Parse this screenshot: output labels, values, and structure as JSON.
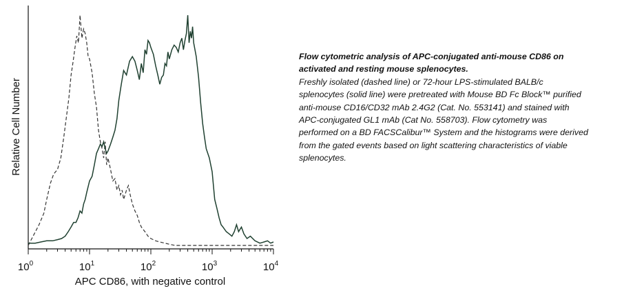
{
  "chart_data": {
    "type": "line",
    "xscale": "log",
    "xlim": [
      1,
      10000
    ],
    "ylim": [
      0,
      1
    ],
    "xlabel": "APC CD86, with negative control",
    "ylabel": "Relative Cell Number",
    "x_tick_labels": [
      {
        "base": "10",
        "exp": "0",
        "value": 1
      },
      {
        "base": "10",
        "exp": "1",
        "value": 10
      },
      {
        "base": "10",
        "exp": "2",
        "value": 100
      },
      {
        "base": "10",
        "exp": "3",
        "value": 1000
      },
      {
        "base": "10",
        "exp": "4",
        "value": 10000
      }
    ],
    "series": [
      {
        "style": "dashed",
        "color": "#333333",
        "x": [
          1.0,
          1.2,
          1.5,
          1.8,
          2.0,
          2.3,
          2.6,
          3.0,
          3.4,
          3.8,
          4.2,
          4.6,
          5.0,
          5.4,
          5.8,
          6.2,
          6.6,
          7.0,
          7.5,
          8.0,
          8.5,
          9.0,
          9.5,
          10,
          11,
          12,
          13,
          14,
          15,
          16,
          17,
          18,
          19,
          20,
          22,
          24,
          26,
          28,
          30,
          32,
          34,
          36,
          38,
          40,
          43,
          46,
          50,
          55,
          60,
          65,
          70,
          80,
          90,
          100,
          120,
          140,
          170,
          200,
          250,
          300,
          400,
          500,
          700,
          1000,
          1500,
          2000,
          3000,
          5000,
          7000,
          10000
        ],
        "y": [
          0.0,
          0.04,
          0.09,
          0.14,
          0.2,
          0.27,
          0.31,
          0.33,
          0.38,
          0.47,
          0.56,
          0.64,
          0.74,
          0.8,
          0.86,
          0.91,
          0.88,
          1.0,
          0.9,
          0.94,
          0.92,
          0.88,
          0.82,
          0.81,
          0.75,
          0.66,
          0.6,
          0.5,
          0.45,
          0.42,
          0.38,
          0.45,
          0.35,
          0.38,
          0.33,
          0.28,
          0.29,
          0.24,
          0.26,
          0.22,
          0.24,
          0.2,
          0.22,
          0.24,
          0.26,
          0.22,
          0.18,
          0.15,
          0.13,
          0.1,
          0.08,
          0.06,
          0.04,
          0.03,
          0.02,
          0.015,
          0.01,
          0.005,
          0.0,
          0.0,
          0.0,
          0.0,
          0.0,
          0.0,
          0.0,
          0.0,
          0.0,
          0.0,
          0.0,
          0.0
        ]
      },
      {
        "style": "solid",
        "color": "#1f4030",
        "x": [
          1.0,
          1.3,
          1.6,
          2.0,
          2.5,
          3.0,
          3.5,
          4.0,
          4.5,
          5.0,
          5.5,
          6.0,
          6.5,
          7.0,
          7.5,
          8.0,
          8.5,
          9.0,
          10,
          11,
          12,
          13,
          14,
          15,
          16,
          17,
          18,
          19,
          20,
          22,
          24,
          26,
          28,
          30,
          33,
          36,
          40,
          45,
          50,
          55,
          60,
          65,
          70,
          75,
          80,
          85,
          90,
          95,
          100,
          110,
          120,
          130,
          140,
          150,
          160,
          170,
          180,
          190,
          200,
          220,
          240,
          260,
          280,
          300,
          320,
          340,
          360,
          380,
          400,
          420,
          440,
          460,
          480,
          500,
          550,
          600,
          650,
          700,
          750,
          800,
          900,
          1000,
          1100,
          1200,
          1300,
          1400,
          1500,
          1700,
          1900,
          2100,
          2300,
          2500,
          2700,
          3000,
          3300,
          3700,
          4200,
          5000,
          6000,
          7000,
          8000,
          9000,
          10000
        ],
        "y": [
          0.01,
          0.01,
          0.015,
          0.02,
          0.02,
          0.025,
          0.03,
          0.04,
          0.06,
          0.08,
          0.1,
          0.1,
          0.12,
          0.15,
          0.14,
          0.18,
          0.2,
          0.23,
          0.28,
          0.3,
          0.35,
          0.4,
          0.42,
          0.44,
          0.43,
          0.45,
          0.42,
          0.4,
          0.41,
          0.44,
          0.47,
          0.5,
          0.55,
          0.63,
          0.7,
          0.76,
          0.74,
          0.8,
          0.82,
          0.8,
          0.76,
          0.72,
          0.79,
          0.75,
          0.85,
          0.83,
          0.89,
          0.88,
          0.86,
          0.83,
          0.78,
          0.74,
          0.7,
          0.73,
          0.74,
          0.79,
          0.78,
          0.84,
          0.81,
          0.85,
          0.87,
          0.86,
          0.84,
          0.88,
          0.9,
          0.85,
          0.89,
          0.92,
          1.0,
          0.88,
          0.93,
          0.9,
          0.95,
          0.88,
          0.82,
          0.73,
          0.62,
          0.53,
          0.47,
          0.42,
          0.38,
          0.32,
          0.2,
          0.16,
          0.12,
          0.09,
          0.08,
          0.06,
          0.05,
          0.04,
          0.06,
          0.09,
          0.06,
          0.08,
          0.05,
          0.03,
          0.04,
          0.02,
          0.01,
          0.015,
          0.02,
          0.01,
          0.015
        ]
      }
    ],
    "grid": false,
    "legend": "none"
  },
  "caption": {
    "title": "Flow cytometric analysis of APC-conjugated anti-mouse CD86 on activated and resting mouse splenocytes.",
    "body": "Freshly isolated (dashed line) or 72-hour LPS-stimulated BALB/c splenocytes (solid line) were pretreated with Mouse BD Fc Block™ purified anti-mouse CD16/CD32 mAb 2.4G2 (Cat. No. 553141) and stained with APC-conjugated GL1 mAb (Cat No. 558703). Flow cytometry was performed on a BD FACSCalibur™ System and the histograms were derived from the gated events based on light scattering characteristics of viable splenocytes."
  }
}
